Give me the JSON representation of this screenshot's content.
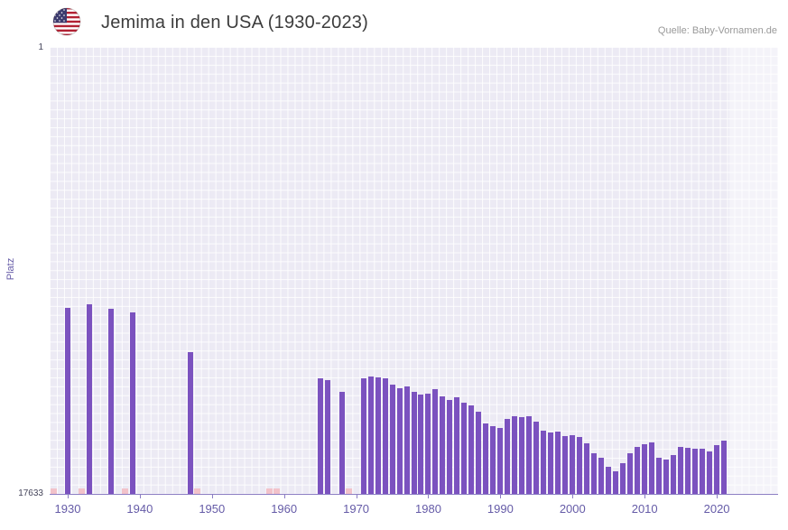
{
  "header": {
    "title": "Jemima in den USA (1930-2023)",
    "source": "Quelle: Baby-Vornamen.de",
    "flag_icon": "us-flag"
  },
  "axes": {
    "y_label": "Platz",
    "y_max_label": "1",
    "y_min_label": "17633",
    "x_tick_labels": [
      "1930",
      "1940",
      "1950",
      "1960",
      "1970",
      "1980",
      "1990",
      "2000",
      "2010",
      "2020"
    ]
  },
  "colors": {
    "bar": "#7b52bf",
    "plot_bg": "#eceaf4",
    "grid": "#ffffff",
    "no_rank_marker": "#f2c2ca",
    "axis_line": "#8b7dc3",
    "x_tick_text": "#655ba7",
    "highlight_band": "rgba(255,255,255,0.45)"
  },
  "chart_data": {
    "type": "bar",
    "title": "Jemima in den USA (1930-2023)",
    "xlabel": "",
    "ylabel": "Platz",
    "y_scale": "log",
    "y_axis_inverted": true,
    "ylim": [
      1,
      17633
    ],
    "x_domain": [
      1928,
      2029
    ],
    "x_ticks": [
      1930,
      1940,
      1950,
      1960,
      1970,
      1980,
      1990,
      2000,
      2010,
      2020
    ],
    "years": [
      1930,
      1933,
      1936,
      1939,
      1947,
      1965,
      1966,
      1968,
      1971,
      1972,
      1973,
      1974,
      1975,
      1976,
      1977,
      1978,
      1979,
      1980,
      1981,
      1982,
      1983,
      1984,
      1985,
      1986,
      1987,
      1988,
      1989,
      1990,
      1991,
      1992,
      1993,
      1994,
      1995,
      1996,
      1997,
      1998,
      1999,
      2000,
      2001,
      2002,
      2003,
      2004,
      2005,
      2006,
      2007,
      2008,
      2009,
      2010,
      2011,
      2012,
      2013,
      2014,
      2015,
      2016,
      2017,
      2018,
      2019,
      2020,
      2021
    ],
    "ranks": [
      300,
      280,
      310,
      330,
      790,
      1400,
      1450,
      1900,
      1400,
      1350,
      1380,
      1420,
      1600,
      1750,
      1680,
      1900,
      2000,
      1950,
      1800,
      2100,
      2250,
      2150,
      2400,
      2550,
      2900,
      3800,
      4000,
      4200,
      3400,
      3250,
      3300,
      3250,
      3600,
      4400,
      4600,
      4500,
      5000,
      4900,
      5100,
      5800,
      7200,
      8000,
      9800,
      10800,
      9000,
      7200,
      6300,
      5900,
      5700,
      8000,
      8400,
      7600,
      6300,
      6500,
      6600,
      6600,
      6900,
      6100,
      5500
    ],
    "no_rank_years": [
      1928,
      1932,
      1938,
      1948,
      1958,
      1959,
      1969
    ],
    "highlight_band_x": [
      2022.3,
      2029
    ],
    "legend": "none",
    "grid": "on"
  }
}
